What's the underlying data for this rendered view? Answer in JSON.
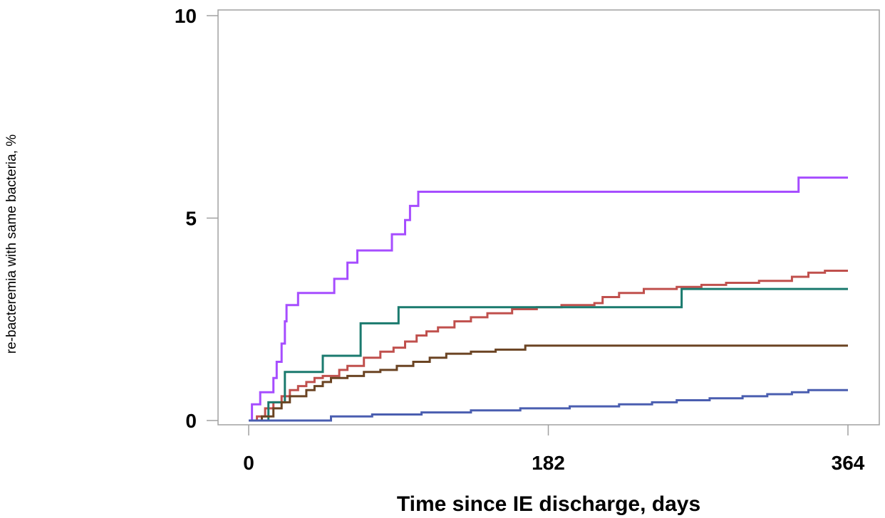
{
  "chart_data": {
    "type": "line",
    "step": true,
    "xlabel": "Time since IE discharge, days",
    "ylabel": "re-bacteremia with same bacteria, %",
    "xlim": [
      0,
      364
    ],
    "ylim": [
      0,
      10
    ],
    "x_ticks": [
      0,
      182,
      364
    ],
    "y_ticks": [
      0,
      5,
      10
    ],
    "grid": false,
    "legend": "none",
    "series": [
      {
        "color": "#a64dff",
        "points": [
          [
            0,
            0
          ],
          [
            2,
            0.4
          ],
          [
            7,
            0.7
          ],
          [
            15,
            1.05
          ],
          [
            17,
            1.45
          ],
          [
            20,
            1.9
          ],
          [
            22,
            2.45
          ],
          [
            23,
            2.85
          ],
          [
            30,
            3.15
          ],
          [
            52,
            3.5
          ],
          [
            60,
            3.9
          ],
          [
            66,
            4.2
          ],
          [
            87,
            4.6
          ],
          [
            95,
            4.95
          ],
          [
            98,
            5.3
          ],
          [
            103,
            5.65
          ],
          [
            334,
            6.0
          ],
          [
            364,
            6.0
          ]
        ]
      },
      {
        "color": "#c0504d",
        "points": [
          [
            0,
            0
          ],
          [
            5,
            0.1
          ],
          [
            10,
            0.3
          ],
          [
            15,
            0.45
          ],
          [
            20,
            0.6
          ],
          [
            25,
            0.75
          ],
          [
            30,
            0.85
          ],
          [
            35,
            0.95
          ],
          [
            40,
            1.05
          ],
          [
            45,
            1.1
          ],
          [
            55,
            1.25
          ],
          [
            60,
            1.35
          ],
          [
            70,
            1.55
          ],
          [
            80,
            1.7
          ],
          [
            88,
            1.8
          ],
          [
            95,
            1.95
          ],
          [
            102,
            2.1
          ],
          [
            108,
            2.2
          ],
          [
            115,
            2.3
          ],
          [
            125,
            2.45
          ],
          [
            135,
            2.55
          ],
          [
            145,
            2.65
          ],
          [
            160,
            2.75
          ],
          [
            175,
            2.8
          ],
          [
            190,
            2.85
          ],
          [
            210,
            2.9
          ],
          [
            215,
            3.05
          ],
          [
            225,
            3.15
          ],
          [
            240,
            3.25
          ],
          [
            260,
            3.3
          ],
          [
            275,
            3.35
          ],
          [
            290,
            3.4
          ],
          [
            310,
            3.45
          ],
          [
            330,
            3.55
          ],
          [
            340,
            3.65
          ],
          [
            350,
            3.7
          ],
          [
            364,
            3.7
          ]
        ]
      },
      {
        "color": "#1a7a6e",
        "points": [
          [
            0,
            0
          ],
          [
            12,
            0.45
          ],
          [
            22,
            1.2
          ],
          [
            45,
            1.6
          ],
          [
            68,
            2.4
          ],
          [
            91,
            2.8
          ],
          [
            263,
            3.25
          ],
          [
            364,
            3.25
          ]
        ]
      },
      {
        "color": "#6b4423",
        "points": [
          [
            0,
            0
          ],
          [
            8,
            0.1
          ],
          [
            15,
            0.3
          ],
          [
            20,
            0.45
          ],
          [
            25,
            0.6
          ],
          [
            35,
            0.75
          ],
          [
            40,
            0.85
          ],
          [
            45,
            0.95
          ],
          [
            50,
            1.05
          ],
          [
            60,
            1.1
          ],
          [
            70,
            1.2
          ],
          [
            80,
            1.25
          ],
          [
            90,
            1.35
          ],
          [
            100,
            1.45
          ],
          [
            110,
            1.55
          ],
          [
            120,
            1.65
          ],
          [
            135,
            1.7
          ],
          [
            150,
            1.75
          ],
          [
            168,
            1.85
          ],
          [
            364,
            1.85
          ]
        ]
      },
      {
        "color": "#4a5eb0",
        "points": [
          [
            0,
            0
          ],
          [
            50,
            0.1
          ],
          [
            75,
            0.15
          ],
          [
            105,
            0.2
          ],
          [
            135,
            0.25
          ],
          [
            165,
            0.3
          ],
          [
            195,
            0.35
          ],
          [
            225,
            0.4
          ],
          [
            245,
            0.45
          ],
          [
            260,
            0.5
          ],
          [
            280,
            0.55
          ],
          [
            300,
            0.6
          ],
          [
            315,
            0.65
          ],
          [
            330,
            0.7
          ],
          [
            340,
            0.75
          ],
          [
            364,
            0.75
          ]
        ]
      }
    ]
  }
}
